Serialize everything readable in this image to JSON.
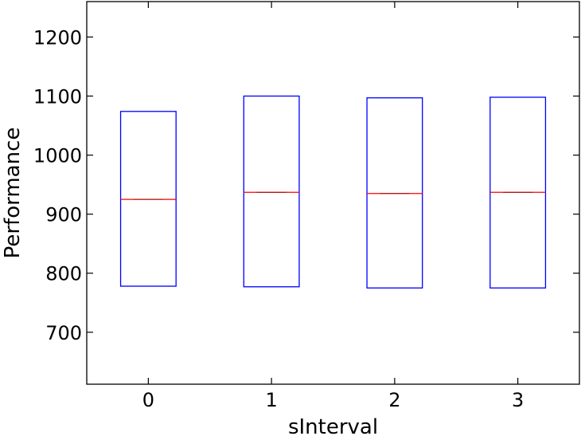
{
  "chart_data": {
    "type": "box",
    "xlabel": "sInterval",
    "ylabel": "Performance",
    "categories": [
      "0",
      "1",
      "2",
      "3"
    ],
    "ylim": [
      612,
      1260
    ],
    "yticks": [
      700,
      800,
      900,
      1000,
      1100,
      1200
    ],
    "boxes": [
      {
        "category": "0",
        "q1": 778,
        "median": 925,
        "q3": 1074
      },
      {
        "category": "1",
        "q1": 777,
        "median": 937,
        "q3": 1100
      },
      {
        "category": "2",
        "q1": 775,
        "median": 935,
        "q3": 1097
      },
      {
        "category": "3",
        "q1": 775,
        "median": 937,
        "q3": 1098
      }
    ],
    "grid": false,
    "colors": {
      "box": "#0000ff",
      "median": "#ff0000",
      "axis": "#000000"
    }
  }
}
